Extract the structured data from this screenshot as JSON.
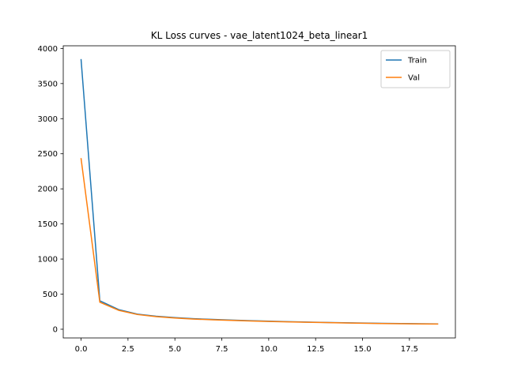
{
  "chart_data": {
    "type": "line",
    "title": "KL Loss curves - vae_latent1024_beta_linear1",
    "xlabel": "",
    "ylabel": "",
    "xlim": [
      -0.95,
      19.95
    ],
    "ylim": [
      -124,
      4038
    ],
    "xticks": [
      0.0,
      2.5,
      5.0,
      7.5,
      10.0,
      12.5,
      15.0,
      17.5
    ],
    "xtick_labels": [
      "0.0",
      "2.5",
      "5.0",
      "7.5",
      "10.0",
      "12.5",
      "15.0",
      "17.5"
    ],
    "yticks": [
      0,
      500,
      1000,
      1500,
      2000,
      2500,
      3000,
      3500,
      4000
    ],
    "ytick_labels": [
      "0",
      "500",
      "1000",
      "1500",
      "2000",
      "2500",
      "3000",
      "3500",
      "4000"
    ],
    "grid": false,
    "legend_position": "top-right",
    "x": [
      0,
      1,
      2,
      3,
      4,
      5,
      6,
      7,
      8,
      9,
      10,
      11,
      12,
      13,
      14,
      15,
      16,
      17,
      18,
      19
    ],
    "series": [
      {
        "name": "Train",
        "color": "#1f77b4",
        "values": [
          3840,
          405,
          280,
          215,
          185,
          165,
          150,
          140,
          130,
          122,
          115,
          108,
          102,
          97,
          93,
          88,
          84,
          81,
          78,
          76
        ]
      },
      {
        "name": "Val",
        "color": "#ff7f0e",
        "values": [
          2430,
          385,
          270,
          210,
          180,
          160,
          145,
          135,
          126,
          118,
          111,
          105,
          99,
          95,
          90,
          86,
          82,
          79,
          76,
          74
        ]
      }
    ]
  }
}
